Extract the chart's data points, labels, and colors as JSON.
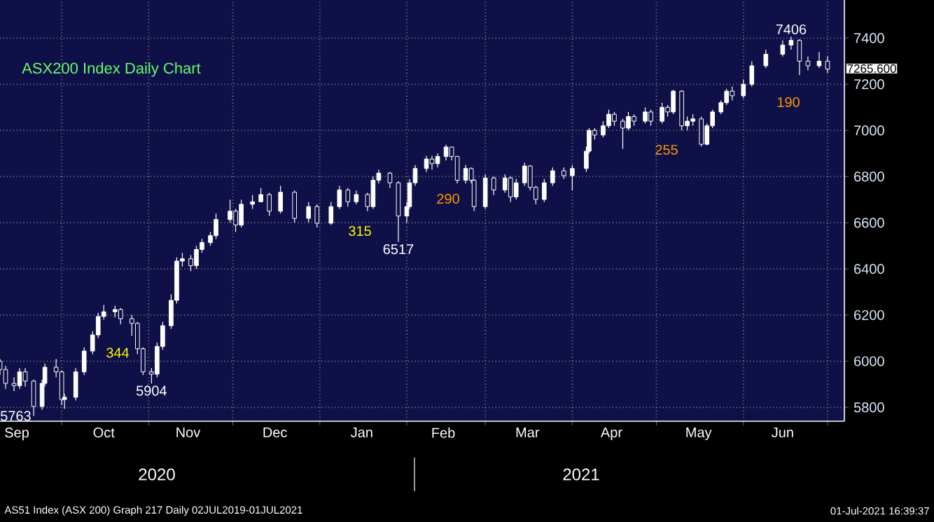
{
  "chart_data": {
    "type": "candlestick",
    "title": "ASX200 Index Daily Chart",
    "color": "#ffffff",
    "x": [
      "2020-09-09",
      "2020-09-11",
      "2020-09-14",
      "2020-09-16",
      "2020-09-18",
      "2020-09-21",
      "2020-09-24",
      "2020-09-25",
      "2020-09-29",
      "2020-10-01",
      "2020-10-02",
      "2020-10-06",
      "2020-10-09",
      "2020-10-12",
      "2020-10-14",
      "2020-10-16",
      "2020-10-20",
      "2020-10-22",
      "2020-10-26",
      "2020-10-28",
      "2020-10-30",
      "2020-11-02",
      "2020-11-04",
      "2020-11-06",
      "2020-11-09",
      "2020-11-11",
      "2020-11-13",
      "2020-11-16",
      "2020-11-18",
      "2020-11-20",
      "2020-11-23",
      "2020-11-25",
      "2020-11-30",
      "2020-12-02",
      "2020-12-04",
      "2020-12-08",
      "2020-12-11",
      "2020-12-14",
      "2020-12-18",
      "2020-12-23",
      "2020-12-28",
      "2020-12-31",
      "2021-01-05",
      "2021-01-08",
      "2021-01-11",
      "2021-01-14",
      "2021-01-18",
      "2021-01-20",
      "2021-01-22",
      "2021-01-26",
      "2021-01-29",
      "2021-02-01",
      "2021-02-02",
      "2021-02-04",
      "2021-02-08",
      "2021-02-10",
      "2021-02-12",
      "2021-02-15",
      "2021-02-17",
      "2021-02-19",
      "2021-02-22",
      "2021-02-24",
      "2021-02-25",
      "2021-03-01",
      "2021-03-04",
      "2021-03-08",
      "2021-03-10",
      "2021-03-12",
      "2021-03-15",
      "2021-03-17",
      "2021-03-19",
      "2021-03-22",
      "2021-03-25",
      "2021-03-29",
      "2021-04-01",
      "2021-04-06",
      "2021-04-07",
      "2021-04-09",
      "2021-04-12",
      "2021-04-14",
      "2021-04-16",
      "2021-04-19",
      "2021-04-21",
      "2021-04-23",
      "2021-04-27",
      "2021-04-29",
      "2021-05-03",
      "2021-05-05",
      "2021-05-07",
      "2021-05-10",
      "2021-05-12",
      "2021-05-14",
      "2021-05-17",
      "2021-05-19",
      "2021-05-21",
      "2021-05-24",
      "2021-05-26",
      "2021-05-28",
      "2021-06-01",
      "2021-06-04",
      "2021-06-09",
      "2021-06-15",
      "2021-06-18",
      "2021-06-21",
      "2021-06-24",
      "2021-06-28",
      "2021-07-01"
    ],
    "ohlc": [
      [
        6000,
        6010,
        5940,
        5964
      ],
      [
        5964,
        5980,
        5880,
        5904
      ],
      [
        5904,
        5930,
        5870,
        5894
      ],
      [
        5894,
        5970,
        5880,
        5954
      ],
      [
        5954,
        5970,
        5890,
        5914
      ],
      [
        5914,
        5920,
        5763,
        5804
      ],
      [
        5804,
        5920,
        5790,
        5904
      ],
      [
        5904,
        5990,
        5890,
        5974
      ],
      [
        5974,
        6010,
        5930,
        5954
      ],
      [
        5954,
        5960,
        5810,
        5834
      ],
      [
        5834,
        5860,
        5794,
        5844
      ],
      [
        5844,
        5970,
        5830,
        5954
      ],
      [
        5954,
        6060,
        5940,
        6044
      ],
      [
        6044,
        6130,
        6030,
        6114
      ],
      [
        6114,
        6210,
        6100,
        6194
      ],
      [
        6194,
        6244,
        6180,
        6214
      ],
      [
        6214,
        6240,
        6190,
        6224
      ],
      [
        6224,
        6230,
        6160,
        6184
      ],
      [
        6184,
        6200,
        6110,
        6164
      ],
      [
        6164,
        6170,
        6030,
        6054
      ],
      [
        6054,
        6060,
        5940,
        5954
      ],
      [
        5954,
        5970,
        5904,
        5944
      ],
      [
        5944,
        6080,
        5930,
        6064
      ],
      [
        6064,
        6170,
        6050,
        6154
      ],
      [
        6154,
        6290,
        6140,
        6264
      ],
      [
        6264,
        6450,
        6250,
        6434
      ],
      [
        6434,
        6470,
        6410,
        6444
      ],
      [
        6444,
        6460,
        6390,
        6414
      ],
      [
        6414,
        6500,
        6400,
        6484
      ],
      [
        6484,
        6530,
        6470,
        6514
      ],
      [
        6514,
        6560,
        6500,
        6544
      ],
      [
        6544,
        6640,
        6530,
        6614
      ],
      [
        6614,
        6700,
        6600,
        6650
      ],
      [
        6650,
        6660,
        6560,
        6590
      ],
      [
        6590,
        6700,
        6580,
        6680
      ],
      [
        6680,
        6720,
        6660,
        6691
      ],
      [
        6691,
        6750,
        6690,
        6722
      ],
      [
        6722,
        6730,
        6630,
        6650
      ],
      [
        6650,
        6760,
        6640,
        6732
      ],
      [
        6732,
        6740,
        6600,
        6619
      ],
      [
        6619,
        6690,
        6600,
        6670
      ],
      [
        6670,
        6680,
        6580,
        6598
      ],
      [
        6598,
        6690,
        6590,
        6670
      ],
      [
        6670,
        6760,
        6660,
        6742
      ],
      [
        6742,
        6750,
        6670,
        6691
      ],
      [
        6691,
        6740,
        6680,
        6722
      ],
      [
        6722,
        6730,
        6650,
        6670
      ],
      [
        6670,
        6800,
        6660,
        6784
      ],
      [
        6784,
        6830,
        6770,
        6815
      ],
      [
        6815,
        6820,
        6750,
        6773
      ],
      [
        6773,
        6780,
        6517,
        6629
      ],
      [
        6629,
        6690,
        6600,
        6670
      ],
      [
        6670,
        6790,
        6660,
        6773
      ],
      [
        6773,
        6850,
        6760,
        6835
      ],
      [
        6835,
        6890,
        6820,
        6876
      ],
      [
        6876,
        6890,
        6830,
        6856
      ],
      [
        6856,
        6900,
        6840,
        6887
      ],
      [
        6887,
        6938,
        6870,
        6928
      ],
      [
        6928,
        6930,
        6870,
        6887
      ],
      [
        6887,
        6890,
        6770,
        6784
      ],
      [
        6784,
        6850,
        6770,
        6835
      ],
      [
        6835,
        6840,
        6770,
        6784
      ],
      [
        6784,
        6790,
        6650,
        6670
      ],
      [
        6670,
        6810,
        6660,
        6794
      ],
      [
        6794,
        6800,
        6720,
        6742
      ],
      [
        6742,
        6810,
        6730,
        6794
      ],
      [
        6794,
        6800,
        6690,
        6712
      ],
      [
        6712,
        6790,
        6700,
        6773
      ],
      [
        6773,
        6860,
        6760,
        6846
      ],
      [
        6846,
        6850,
        6740,
        6753
      ],
      [
        6753,
        6760,
        6680,
        6701
      ],
      [
        6701,
        6790,
        6690,
        6773
      ],
      [
        6773,
        6840,
        6760,
        6825
      ],
      [
        6825,
        6840,
        6790,
        6804
      ],
      [
        6804,
        6850,
        6740,
        6835
      ],
      [
        6835,
        6930,
        6820,
        6910
      ],
      [
        6910,
        7010,
        6900,
        7000
      ],
      [
        7000,
        7010,
        6960,
        6980
      ],
      [
        6980,
        7040,
        6970,
        7020
      ],
      [
        7020,
        7090,
        7010,
        7070
      ],
      [
        7070,
        7080,
        7020,
        7040
      ],
      [
        7040,
        7050,
        6920,
        7010
      ],
      [
        7010,
        7080,
        7000,
        7060
      ],
      [
        7060,
        7070,
        7020,
        7040
      ],
      [
        7040,
        7100,
        7030,
        7080
      ],
      [
        7080,
        7090,
        7020,
        7040
      ],
      [
        7040,
        7120,
        7030,
        7100
      ],
      [
        7100,
        7110,
        7060,
        7080
      ],
      [
        7080,
        7176,
        7070,
        7170
      ],
      [
        7170,
        7175,
        7000,
        7020
      ],
      [
        7020,
        7060,
        7000,
        7040
      ],
      [
        7040,
        7070,
        7020,
        7050
      ],
      [
        7050,
        7060,
        6930,
        6940
      ],
      [
        6940,
        7030,
        6935,
        7020
      ],
      [
        7020,
        7090,
        7010,
        7080
      ],
      [
        7080,
        7130,
        7070,
        7120
      ],
      [
        7120,
        7180,
        7110,
        7170
      ],
      [
        7170,
        7190,
        7130,
        7150
      ],
      [
        7150,
        7220,
        7140,
        7200
      ],
      [
        7200,
        7300,
        7190,
        7280
      ],
      [
        7280,
        7350,
        7270,
        7330
      ],
      [
        7330,
        7390,
        7320,
        7370
      ],
      [
        7370,
        7406,
        7350,
        7390
      ],
      [
        7390,
        7395,
        7240,
        7300
      ],
      [
        7300,
        7320,
        7260,
        7280
      ],
      [
        7280,
        7340,
        7270,
        7300
      ],
      [
        7300,
        7320,
        7250,
        7265.6
      ]
    ],
    "xlim": [
      "2020-09-09",
      "2021-07-07"
    ],
    "xticks": [
      {
        "value": "2020-09-15",
        "label": "Sep"
      },
      {
        "value": "2020-10-01",
        "label": null
      },
      {
        "value": "2020-10-16",
        "label": "Oct"
      },
      {
        "value": "2020-11-01",
        "label": null
      },
      {
        "value": "2020-11-15",
        "label": "Nov"
      },
      {
        "value": "2020-12-01",
        "label": null
      },
      {
        "value": "2020-12-16",
        "label": "Dec"
      },
      {
        "value": "2021-01-01",
        "label": null
      },
      {
        "value": "2021-01-16",
        "label": "Jan"
      },
      {
        "value": "2021-02-01",
        "label": null
      },
      {
        "value": "2021-02-14",
        "label": "Feb"
      },
      {
        "value": "2021-03-01",
        "label": null
      },
      {
        "value": "2021-03-16",
        "label": "Mar"
      },
      {
        "value": "2021-04-01",
        "label": null
      },
      {
        "value": "2021-04-15",
        "label": "Apr"
      },
      {
        "value": "2021-05-01",
        "label": null
      },
      {
        "value": "2021-05-16",
        "label": "May"
      },
      {
        "value": "2021-06-01",
        "label": null
      },
      {
        "value": "2021-06-15",
        "label": "Jun"
      },
      {
        "value": "2021-07-01",
        "label": null
      }
    ],
    "ylim": [
      5740,
      7565
    ],
    "yticks": [
      5800,
      6000,
      6200,
      6400,
      6600,
      6800,
      7000,
      7200,
      7400
    ],
    "grid": true,
    "annotations": [
      {
        "text": "7406",
        "x": "2021-06-18",
        "y": 7406
      },
      {
        "text": "5763",
        "x": "2020-09-21",
        "y": 5763
      },
      {
        "text": "5904",
        "x": "2020-11-02",
        "y": 5904
      },
      {
        "text": "6517",
        "x": "2021-01-29",
        "y": 6517
      },
      "344",
      "315",
      "290",
      "255",
      "190",
      "7265.600",
      "2020",
      "2021",
      "AS51 Index (ASX 200) Graph 217  Daily 02JUL2019-01JUL2021",
      "01-Jul-2021 16:39:37"
    ]
  }
}
